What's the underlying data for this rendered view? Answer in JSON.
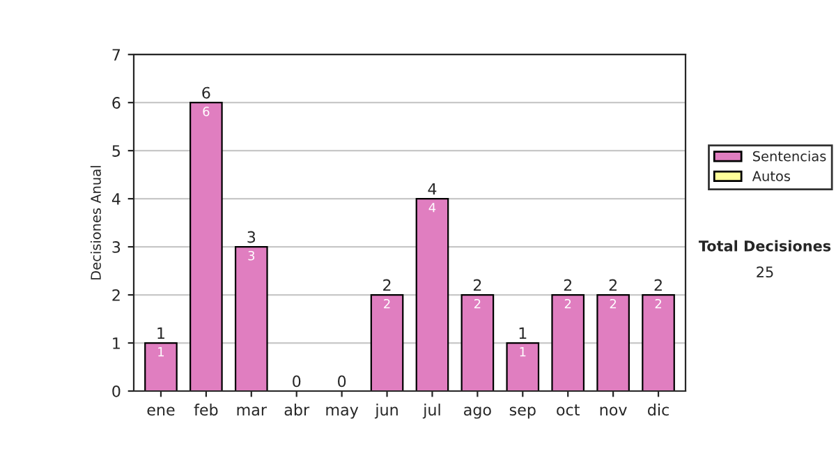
{
  "chart_data": {
    "type": "bar",
    "stacked": true,
    "ylabel": "Decisiones Anual",
    "categories": [
      "ene",
      "feb",
      "mar",
      "abr",
      "may",
      "jun",
      "jul",
      "ago",
      "sep",
      "oct",
      "nov",
      "dic"
    ],
    "series": [
      {
        "name": "Sentencias",
        "color": "#e07ec0",
        "values": [
          1,
          6,
          3,
          0,
          0,
          2,
          4,
          2,
          1,
          2,
          2,
          2
        ],
        "value_labels": [
          "1",
          "6",
          "3",
          null,
          null,
          "2",
          "4",
          "2",
          "1",
          "2",
          "2",
          "2"
        ]
      },
      {
        "name": "Autos",
        "color": "#ffff99",
        "values": [
          0,
          0,
          0,
          0,
          0,
          0,
          0,
          0,
          0,
          0,
          0,
          0
        ]
      }
    ],
    "totals": [
      "1",
      "6",
      "3",
      "0",
      "0",
      "2",
      "4",
      "2",
      "1",
      "2",
      "2",
      "2"
    ],
    "ylim": [
      0,
      7
    ],
    "yticks": [
      0,
      1,
      2,
      3,
      4,
      5,
      6,
      7
    ],
    "grid": "y",
    "legend": "right",
    "annotations": [
      "Total Decisiones",
      "25"
    ]
  }
}
